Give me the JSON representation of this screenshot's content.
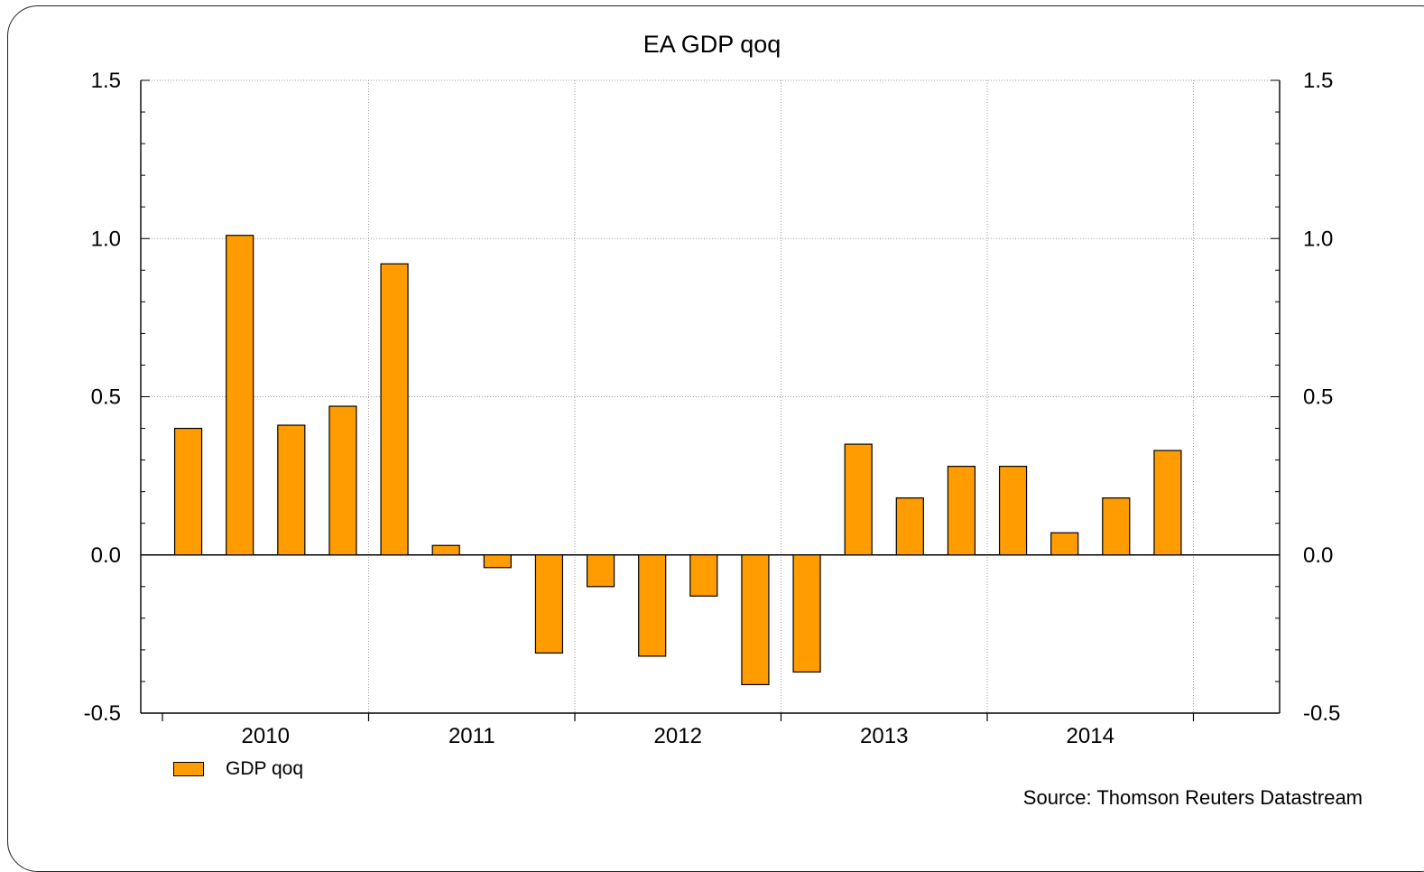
{
  "chart_data": {
    "type": "bar",
    "title": "EA GDP qoq",
    "source": "Source: Thomson Reuters Datastream",
    "bar_color": "#FF9C00",
    "grid": true,
    "legend_position": "bottom-left",
    "ylim": [
      -0.5,
      1.5
    ],
    "yticks": [
      "1.5",
      "1.0",
      "0.5",
      "0.0",
      "-0.5"
    ],
    "ytick_values": [
      1.5,
      1.0,
      0.5,
      0.0,
      -0.5
    ],
    "xticks": [
      "2010",
      "2011",
      "2012",
      "2013",
      "2014"
    ],
    "series": [
      {
        "name": "GDP qoq",
        "values": [
          0.4,
          1.01,
          0.41,
          0.47,
          0.92,
          0.03,
          -0.04,
          -0.31,
          -0.1,
          -0.32,
          -0.13,
          -0.41,
          -0.37,
          0.35,
          0.18,
          0.28,
          0.28,
          0.07,
          0.18,
          0.33
        ]
      }
    ]
  }
}
